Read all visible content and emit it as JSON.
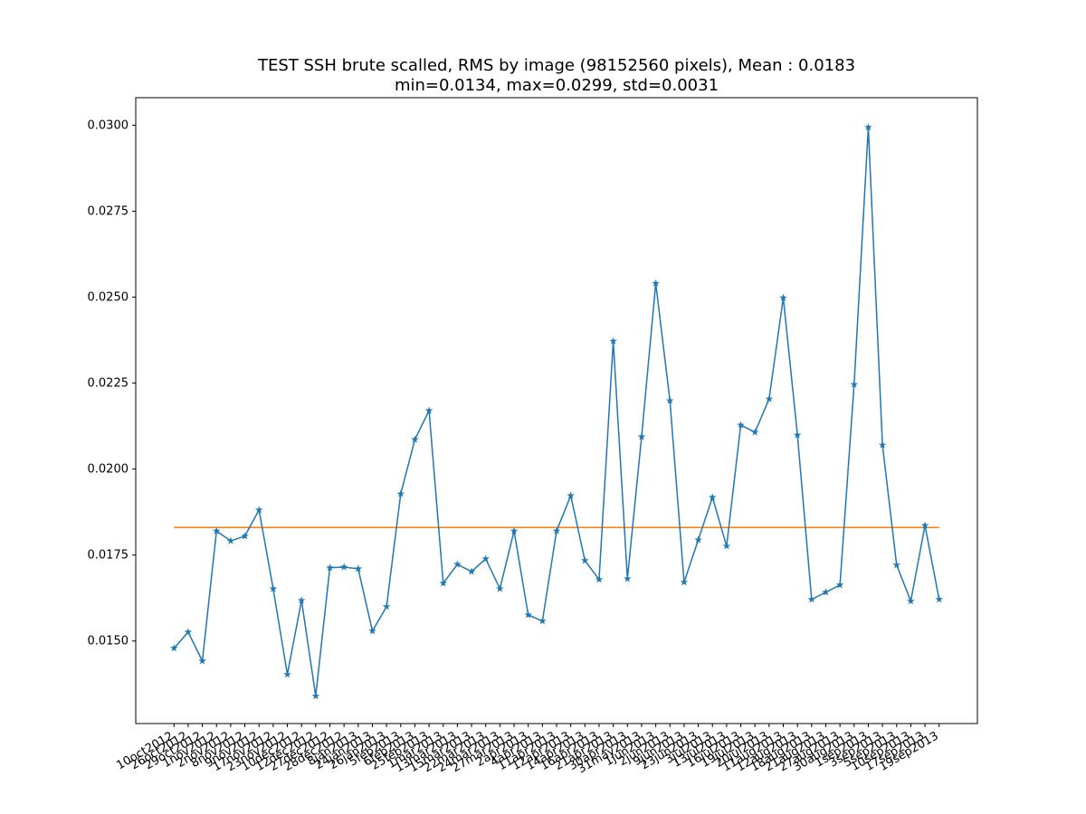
{
  "chart_data": {
    "type": "line",
    "title": "TEST SSH brute scalled, RMS by image (98152560 pixels), Mean : 0.0183",
    "subtitle": "min=0.0134, max=0.0299, std=0.0031",
    "categories": [
      "10oct2012",
      "26oct2012",
      "29oct2012",
      "1nov2012",
      "2nov2012",
      "8nov2012",
      "9nov2012",
      "17nov2012",
      "23nov2012",
      "10dec2012",
      "12dec2012",
      "27dec2012",
      "28dec2012",
      "8jan2013",
      "24jan2013",
      "26jan2013",
      "5feb2013",
      "6feb2013",
      "25feb2013",
      "1mar2013",
      "13mar2013",
      "15mar2013",
      "22mar2013",
      "24mar2013",
      "27mar2013",
      "2apr2013",
      "4apr2013",
      "11apr2013",
      "12apr2013",
      "14apr2013",
      "16apr2013",
      "21apr2013",
      "30apr2013",
      "31may2013",
      "1jun2013",
      "2jun2013",
      "9jun2013",
      "23jun2013",
      "3jul2013",
      "13jul2013",
      "16jul2013",
      "19jul2013",
      "20jul2013",
      "11aug2013",
      "12aug2013",
      "18aug2013",
      "21aug2013",
      "27aug2013",
      "30aug2013",
      "1sep2013",
      "3sep2013",
      "5sep2013",
      "10sep2013",
      "17sep2013",
      "19sep2013"
    ],
    "series": [
      {
        "color": "#1f77b4",
        "marker": "star",
        "values": [
          0.01479,
          0.01526,
          0.01442,
          0.0182,
          0.01791,
          0.01805,
          0.01881,
          0.01652,
          0.01403,
          0.01618,
          0.0134,
          0.01713,
          0.01715,
          0.0171,
          0.01529,
          0.016,
          0.01928,
          0.02086,
          0.0217,
          0.01668,
          0.01723,
          0.01702,
          0.01739,
          0.01652,
          0.0182,
          0.01576,
          0.01558,
          0.0182,
          0.01923,
          0.01734,
          0.01679,
          0.02372,
          0.01681,
          0.02094,
          0.0254,
          0.02199,
          0.01671,
          0.01794,
          0.01918,
          0.01776,
          0.02128,
          0.02107,
          0.02204,
          0.02498,
          0.02099,
          0.01621,
          0.01642,
          0.01663,
          0.02246,
          0.02994,
          0.0207,
          0.01721,
          0.01616,
          0.01836,
          0.01621
        ]
      }
    ],
    "hline": {
      "value": 0.0183,
      "color": "#ff7f0e"
    },
    "ylim": [
      0.0126,
      0.0308
    ],
    "yticks": [
      {
        "value": 0.015,
        "label": "0.0150"
      },
      {
        "value": 0.0175,
        "label": "0.0175"
      },
      {
        "value": 0.02,
        "label": "0.0200"
      },
      {
        "value": 0.0225,
        "label": "0.0225"
      },
      {
        "value": 0.025,
        "label": "0.0250"
      },
      {
        "value": 0.0275,
        "label": "0.0275"
      },
      {
        "value": 0.03,
        "label": "0.0300"
      }
    ],
    "grid": false
  }
}
